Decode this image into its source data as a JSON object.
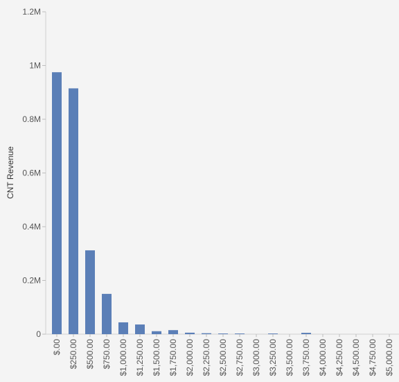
{
  "chart_data": {
    "type": "bar",
    "title": "",
    "xlabel": "",
    "ylabel": "CNT Revenue",
    "ylim": [
      0,
      1200000
    ],
    "grid": false,
    "bar_color": "#5b7fb7",
    "background": "#f4f4f4",
    "yticks": [
      {
        "value": 0,
        "label": "0"
      },
      {
        "value": 200000,
        "label": "0.2M"
      },
      {
        "value": 400000,
        "label": "0.4M"
      },
      {
        "value": 600000,
        "label": "0.6M"
      },
      {
        "value": 800000,
        "label": "0.8M"
      },
      {
        "value": 1000000,
        "label": "1M"
      },
      {
        "value": 1200000,
        "label": "1.2M"
      }
    ],
    "categories": [
      "$.00",
      "$250.00",
      "$500.00",
      "$750.00",
      "$1,000.00",
      "$1,250.00",
      "$1,500.00",
      "$1,750.00",
      "$2,000.00",
      "$2,250.00",
      "$2,500.00",
      "$2,750.00",
      "$3,000.00",
      "$3,250.00",
      "$3,500.00",
      "$3,750.00",
      "$4,000.00",
      "$4,250.00",
      "$4,500.00",
      "$4,750.00",
      "$5,000.00"
    ],
    "values": [
      975000,
      915000,
      312000,
      150000,
      44000,
      36000,
      11000,
      15000,
      5500,
      3500,
      2500,
      2500,
      0,
      2500,
      0,
      5000,
      0,
      0,
      0,
      0,
      0
    ]
  }
}
